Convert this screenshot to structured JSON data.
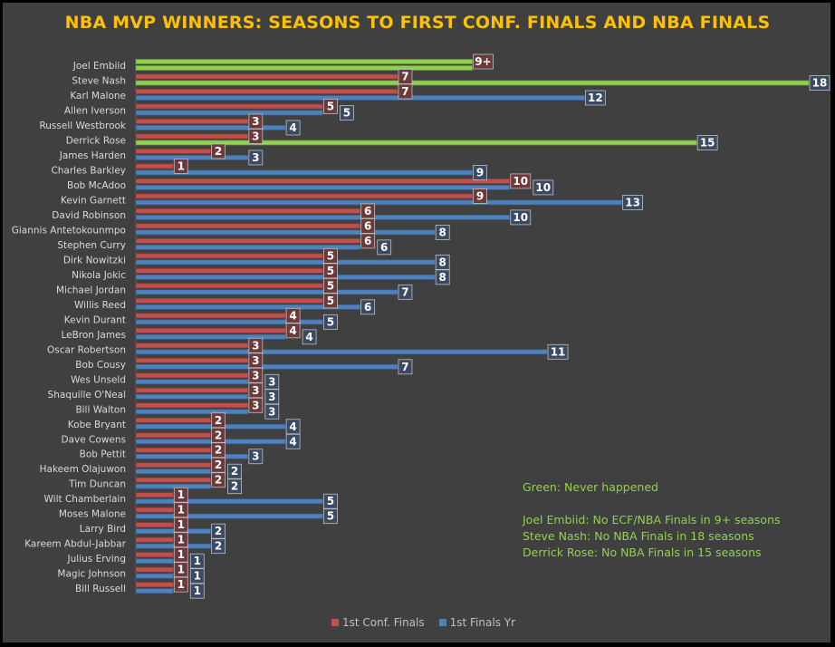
{
  "chart_data": {
    "type": "bar",
    "orientation": "horizontal",
    "title": "NBA MVP WINNERS: SEASONS TO FIRST CONF. FINALS AND NBA FINALS",
    "xlabel": "",
    "ylabel": "",
    "xlim": [
      0,
      18
    ],
    "grid": false,
    "legend_position": "bottom",
    "colors": {
      "conf": "#C0504D",
      "finals": "#4F81BD",
      "never": "#92D050",
      "title": "#FFC000"
    },
    "categories": [
      "Joel Embiid",
      "Steve Nash",
      "Karl Malone",
      "Allen Iverson",
      "Russell Westbrook",
      "Derrick Rose",
      "James Harden",
      "Charles Barkley",
      "Bob McAdoo",
      "Kevin Garnett",
      "David Robinson",
      "Giannis Antetokounmpo",
      "Stephen Curry",
      "Dirk Nowitzki",
      "Nikola Jokic",
      "Michael Jordan",
      "Willis Reed",
      "Kevin Durant",
      "LeBron James",
      "Oscar Robertson",
      "Bob Cousy",
      "Wes Unseld",
      "Shaquille O'Neal",
      "Bill Walton",
      "Kobe Bryant",
      "Dave Cowens",
      "Bob Pettit",
      "Hakeem Olajuwon",
      "Tim Duncan",
      "Wilt Chamberlain",
      "Moses Malone",
      "Larry Bird",
      "Kareem Abdul-Jabbar",
      "Julius Erving",
      "Magic Johnson",
      "Bill Russell"
    ],
    "series": [
      {
        "name": "1st Conf. Finals",
        "values": [
          9,
          7,
          7,
          5,
          3,
          3,
          2,
          1,
          10,
          9,
          6,
          6,
          6,
          5,
          5,
          5,
          5,
          4,
          4,
          3,
          3,
          3,
          3,
          3,
          2,
          2,
          2,
          2,
          2,
          1,
          1,
          1,
          1,
          1,
          1,
          1
        ],
        "labels": [
          "9+",
          "7",
          "7",
          "5",
          "3",
          "3",
          "2",
          "1",
          "10",
          "9",
          "6",
          "6",
          "6",
          "5",
          "5",
          "5",
          "5",
          "4",
          "4",
          "3",
          "3",
          "3",
          "3",
          "3",
          "2",
          "2",
          "2",
          "2",
          "2",
          "1",
          "1",
          "1",
          "1",
          "1",
          "1",
          "1"
        ],
        "never_happened": [
          0
        ]
      },
      {
        "name": "1st Finals Yr",
        "values": [
          9,
          18,
          12,
          5,
          4,
          15,
          3,
          9,
          10,
          13,
          10,
          8,
          6,
          8,
          8,
          7,
          6,
          5,
          4,
          11,
          7,
          3,
          3,
          3,
          4,
          4,
          3,
          2,
          2,
          5,
          5,
          2,
          2,
          1,
          1,
          1
        ],
        "labels": [
          "",
          "18",
          "12",
          "5",
          "4",
          "15",
          "3",
          "9",
          "10",
          "13",
          "10",
          "8",
          "6",
          "8",
          "8",
          "7",
          "6",
          "5",
          "4",
          "11",
          "7",
          "3",
          "3",
          "3",
          "4",
          "4",
          "3",
          "2",
          "2",
          "5",
          "5",
          "2",
          "2",
          "1",
          "1",
          "1"
        ],
        "never_happened": [
          0,
          1,
          5
        ]
      }
    ],
    "annotations": [
      "Green: Never happened",
      "Joel Embiid: No ECF/NBA Finals in 9+ seasons",
      "Steve Nash: No NBA Finals in 18 seasons",
      "Derrick Rose: No NBA Finals in 15 seasons"
    ]
  }
}
